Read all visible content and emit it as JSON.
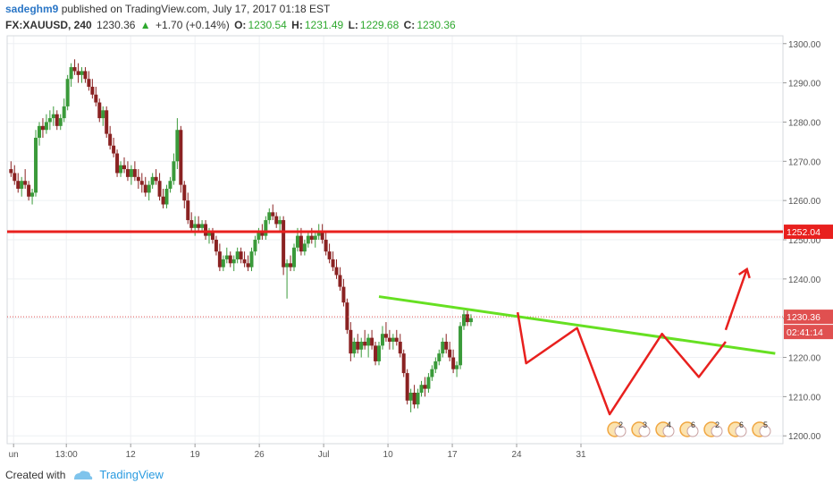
{
  "header": {
    "author": "sadeghm9",
    "published": "published on TradingView.com, July 17, 2017 01:18 EST",
    "symbol": "FX:XAUUSD, 240",
    "last": "1230.36",
    "arrow": "▲",
    "change": "+1.70 (+0.14%)",
    "o_label": "O:",
    "o_val": "1230.54",
    "h_label": "H:",
    "h_val": "1231.49",
    "l_label": "L:",
    "l_val": "1229.68",
    "c_label": "C:",
    "c_val": "1230.36"
  },
  "footer": {
    "created_with": "Created with",
    "brand": "TradingView"
  },
  "colors": {
    "up": "#3a9a3a",
    "down": "#8a2222",
    "red_line": "#e8201e",
    "green_line": "#66e022",
    "grid": "#eef0f3",
    "axis_text": "#555555"
  },
  "chart_data": {
    "type": "candlestick",
    "ylim": [
      1198,
      1302
    ],
    "y_ticks": [
      "1200.00",
      "1210.00",
      "1220.00",
      "1230.00",
      "1240.00",
      "1250.00",
      "1260.00",
      "1270.00",
      "1280.00",
      "1290.00",
      "1300.00"
    ],
    "x_ticks": [
      "un",
      "13:00",
      "12",
      "19",
      "26",
      "Jul",
      "10",
      "17",
      "24",
      "31"
    ],
    "price_labels": {
      "resistance": "1252.04",
      "last_price": "1230.36",
      "countdown": "02:41:14"
    },
    "resistance_level": 1252.04,
    "last_price": 1230.36,
    "neckline": [
      [
        26,
        1235.5
      ],
      [
        54,
        1221.0
      ]
    ],
    "pattern_path": [
      [
        35.8,
        1231.5
      ],
      [
        36.4,
        1218.5
      ],
      [
        40,
        1227.5
      ],
      [
        42.3,
        1205.5
      ],
      [
        46,
        1226.0
      ],
      [
        48.6,
        1215.0
      ],
      [
        50.5,
        1224.0
      ]
    ],
    "arrow": [
      [
        50.5,
        1227.0
      ],
      [
        52.0,
        1242.5
      ]
    ],
    "event_markers": [
      "2",
      "3",
      "4",
      "6",
      "2",
      "6",
      "5"
    ],
    "candles": [
      [
        0,
        1268,
        1270,
        1266,
        1267
      ],
      [
        0.25,
        1267,
        1269,
        1264,
        1265
      ],
      [
        0.5,
        1265,
        1267,
        1262,
        1263
      ],
      [
        0.75,
        1263,
        1266,
        1261,
        1265
      ],
      [
        1,
        1265,
        1268,
        1263,
        1264
      ],
      [
        1.25,
        1264,
        1265,
        1260,
        1261
      ],
      [
        1.5,
        1261,
        1263,
        1259,
        1262
      ],
      [
        1.75,
        1262,
        1278,
        1261,
        1276
      ],
      [
        2,
        1276,
        1280,
        1274,
        1279
      ],
      [
        2.25,
        1279,
        1281,
        1276,
        1278
      ],
      [
        2.5,
        1278,
        1282,
        1277,
        1280
      ],
      [
        2.75,
        1280,
        1283,
        1278,
        1281
      ],
      [
        3,
        1281,
        1284,
        1279,
        1282
      ],
      [
        3.25,
        1282,
        1283,
        1278,
        1279
      ],
      [
        3.5,
        1279,
        1282,
        1278,
        1281
      ],
      [
        3.75,
        1281,
        1286,
        1280,
        1284
      ],
      [
        4,
        1284,
        1292,
        1283,
        1291
      ],
      [
        4.25,
        1291,
        1295,
        1289,
        1294
      ],
      [
        4.5,
        1294,
        1296,
        1292,
        1293
      ],
      [
        4.75,
        1293,
        1295,
        1290,
        1292
      ],
      [
        5,
        1292,
        1294,
        1290,
        1293
      ],
      [
        5.25,
        1293,
        1294,
        1290,
        1291
      ],
      [
        5.5,
        1291,
        1293,
        1288,
        1289
      ],
      [
        5.75,
        1289,
        1291,
        1286,
        1287
      ],
      [
        6,
        1287,
        1289,
        1284,
        1285
      ],
      [
        6.25,
        1285,
        1286,
        1280,
        1281
      ],
      [
        6.5,
        1281,
        1284,
        1279,
        1283
      ],
      [
        6.75,
        1283,
        1284,
        1276,
        1277
      ],
      [
        7,
        1277,
        1279,
        1273,
        1274
      ],
      [
        7.25,
        1274,
        1276,
        1271,
        1272
      ],
      [
        7.5,
        1272,
        1273,
        1266,
        1267
      ],
      [
        7.75,
        1267,
        1270,
        1266,
        1269
      ],
      [
        8,
        1269,
        1271,
        1267,
        1268
      ],
      [
        8.25,
        1268,
        1270,
        1265,
        1266
      ],
      [
        8.5,
        1266,
        1269,
        1264,
        1268
      ],
      [
        8.75,
        1268,
        1270,
        1265,
        1266
      ],
      [
        9,
        1266,
        1268,
        1263,
        1265
      ],
      [
        9.25,
        1265,
        1267,
        1262,
        1264
      ],
      [
        9.5,
        1264,
        1266,
        1261,
        1262
      ],
      [
        9.75,
        1262,
        1265,
        1260,
        1264
      ],
      [
        10,
        1264,
        1267,
        1263,
        1266
      ],
      [
        10.25,
        1266,
        1268,
        1264,
        1265
      ],
      [
        10.5,
        1265,
        1267,
        1260,
        1261
      ],
      [
        10.75,
        1261,
        1263,
        1258,
        1259
      ],
      [
        11,
        1259,
        1264,
        1258,
        1263
      ],
      [
        11.25,
        1263,
        1266,
        1262,
        1265
      ],
      [
        11.5,
        1265,
        1272,
        1264,
        1270
      ],
      [
        11.75,
        1270,
        1281,
        1268,
        1278
      ],
      [
        12,
        1278,
        1279,
        1262,
        1264
      ],
      [
        12.25,
        1264,
        1265,
        1258,
        1260
      ],
      [
        12.5,
        1260,
        1262,
        1254,
        1255
      ],
      [
        12.75,
        1255,
        1257,
        1252,
        1253
      ],
      [
        13,
        1253,
        1256,
        1251,
        1254
      ],
      [
        13.25,
        1254,
        1256,
        1252,
        1253
      ],
      [
        13.5,
        1253,
        1255,
        1252,
        1254
      ],
      [
        13.75,
        1254,
        1255,
        1250,
        1251
      ],
      [
        14,
        1251,
        1253,
        1249,
        1252
      ],
      [
        14.25,
        1252,
        1253,
        1249,
        1250
      ],
      [
        14.5,
        1250,
        1251,
        1246,
        1247
      ],
      [
        14.75,
        1247,
        1249,
        1242,
        1243
      ],
      [
        15,
        1243,
        1246,
        1242,
        1245
      ],
      [
        15.25,
        1245,
        1248,
        1244,
        1246
      ],
      [
        15.5,
        1246,
        1247,
        1243,
        1244
      ],
      [
        15.75,
        1244,
        1246,
        1242,
        1245
      ],
      [
        16,
        1245,
        1248,
        1244,
        1247
      ],
      [
        16.25,
        1247,
        1248,
        1244,
        1245
      ],
      [
        16.5,
        1245,
        1247,
        1243,
        1244
      ],
      [
        16.75,
        1244,
        1246,
        1242,
        1243
      ],
      [
        17,
        1243,
        1248,
        1242,
        1247
      ],
      [
        17.25,
        1247,
        1251,
        1246,
        1250
      ],
      [
        17.5,
        1250,
        1253,
        1249,
        1252
      ],
      [
        17.75,
        1252,
        1254,
        1250,
        1251
      ],
      [
        18,
        1251,
        1256,
        1250,
        1255
      ],
      [
        18.25,
        1255,
        1258,
        1254,
        1257
      ],
      [
        18.5,
        1257,
        1259,
        1255,
        1256
      ],
      [
        18.75,
        1256,
        1257,
        1253,
        1254
      ],
      [
        19,
        1254,
        1256,
        1252,
        1255
      ],
      [
        19.25,
        1255,
        1256,
        1241,
        1243
      ],
      [
        19.5,
        1243,
        1245,
        1235,
        1244
      ],
      [
        19.75,
        1244,
        1246,
        1242,
        1243
      ],
      [
        20,
        1243,
        1249,
        1242,
        1248
      ],
      [
        20.25,
        1248,
        1253,
        1247,
        1251
      ],
      [
        20.5,
        1251,
        1253,
        1246,
        1247
      ],
      [
        20.75,
        1247,
        1250,
        1246,
        1249
      ],
      [
        21,
        1249,
        1252,
        1248,
        1251
      ],
      [
        21.25,
        1251,
        1253,
        1249,
        1250
      ],
      [
        21.5,
        1250,
        1252,
        1248,
        1251
      ],
      [
        21.75,
        1251,
        1254,
        1250,
        1252
      ],
      [
        22,
        1252,
        1254,
        1249,
        1250
      ],
      [
        22.25,
        1250,
        1252,
        1246,
        1247
      ],
      [
        22.5,
        1247,
        1249,
        1244,
        1245
      ],
      [
        22.75,
        1245,
        1247,
        1242,
        1243
      ],
      [
        23,
        1243,
        1245,
        1240,
        1241
      ],
      [
        23.25,
        1241,
        1243,
        1237,
        1238
      ],
      [
        23.5,
        1238,
        1240,
        1233,
        1234
      ],
      [
        23.75,
        1234,
        1235,
        1226,
        1227
      ],
      [
        24,
        1227,
        1229,
        1219,
        1221
      ],
      [
        24.25,
        1221,
        1225,
        1220,
        1224
      ],
      [
        24.5,
        1224,
        1226,
        1221,
        1222
      ],
      [
        24.75,
        1222,
        1225,
        1220,
        1224
      ],
      [
        25,
        1224,
        1227,
        1222,
        1223
      ],
      [
        25.25,
        1223,
        1226,
        1220,
        1225
      ],
      [
        25.5,
        1225,
        1227,
        1222,
        1223
      ],
      [
        25.75,
        1223,
        1224,
        1218,
        1219
      ],
      [
        26,
        1219,
        1224,
        1218,
        1223
      ],
      [
        26.25,
        1223,
        1228,
        1222,
        1226
      ],
      [
        26.5,
        1226,
        1229,
        1224,
        1225
      ],
      [
        26.75,
        1225,
        1227,
        1222,
        1224
      ],
      [
        27,
        1224,
        1226,
        1222,
        1225
      ],
      [
        27.25,
        1225,
        1227,
        1223,
        1224
      ],
      [
        27.5,
        1224,
        1226,
        1220,
        1221
      ],
      [
        27.75,
        1221,
        1222,
        1215,
        1216
      ],
      [
        28,
        1216,
        1217,
        1208,
        1209
      ],
      [
        28.25,
        1209,
        1212,
        1206,
        1211
      ],
      [
        28.5,
        1211,
        1213,
        1207,
        1208
      ],
      [
        28.75,
        1208,
        1212,
        1207,
        1211
      ],
      [
        29,
        1211,
        1214,
        1210,
        1213
      ],
      [
        29.25,
        1213,
        1215,
        1210,
        1212
      ],
      [
        29.5,
        1212,
        1216,
        1211,
        1215
      ],
      [
        29.75,
        1215,
        1218,
        1214,
        1217
      ],
      [
        30,
        1217,
        1220,
        1216,
        1219
      ],
      [
        30.25,
        1219,
        1222,
        1218,
        1221
      ],
      [
        30.5,
        1221,
        1225,
        1220,
        1224
      ],
      [
        30.75,
        1224,
        1226,
        1221,
        1222
      ],
      [
        31,
        1222,
        1224,
        1219,
        1220
      ],
      [
        31.25,
        1220,
        1222,
        1216,
        1217
      ],
      [
        31.5,
        1217,
        1219,
        1215,
        1218
      ],
      [
        31.75,
        1218,
        1229,
        1217,
        1228
      ],
      [
        32,
        1228,
        1232,
        1227,
        1231
      ],
      [
        32.25,
        1231,
        1232,
        1228,
        1229
      ],
      [
        32.5,
        1229,
        1231,
        1228,
        1230
      ]
    ]
  }
}
